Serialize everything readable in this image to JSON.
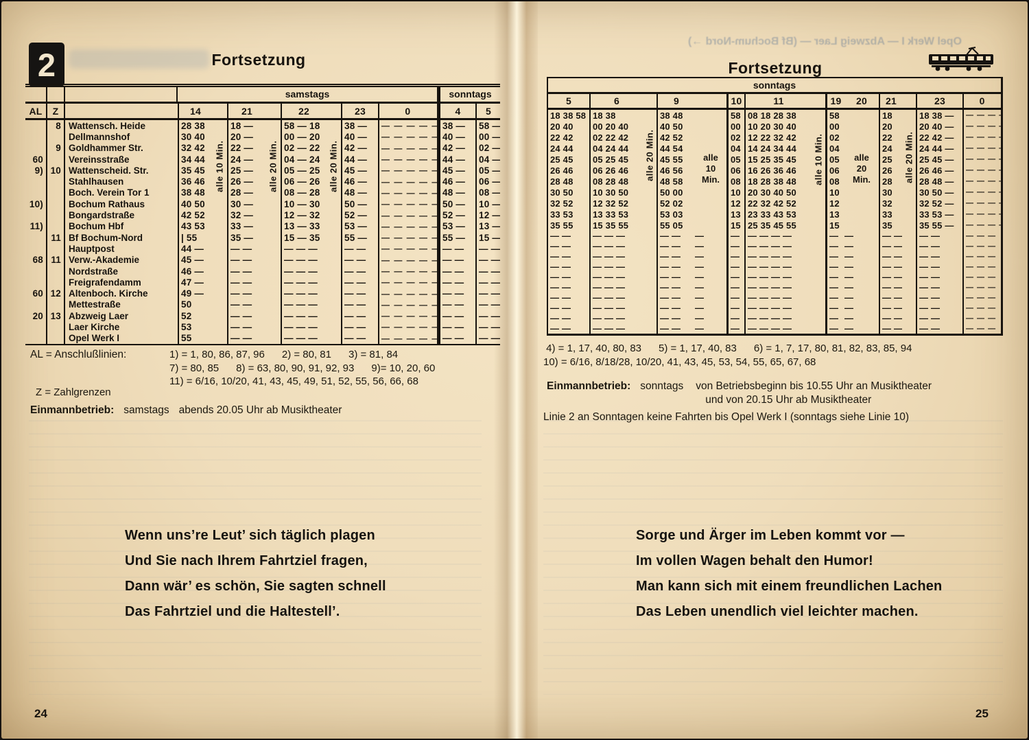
{
  "colors": {
    "paper": "#efddbb",
    "ink": "#17130e",
    "bleedthrough_blue": "#8098b2"
  },
  "page_left": {
    "badge": "2",
    "title": "Fortsetzung",
    "page_number": "24",
    "table": {
      "group_headers": {
        "samstags": "samstags",
        "sonntags": "sonntags"
      },
      "col_headers": [
        "AL",
        "Z",
        "",
        "14",
        "",
        "21",
        "",
        "22",
        "",
        "23",
        "0",
        "4",
        "5"
      ],
      "vertical_labels": [
        "alle 10 Min.",
        "alle 20 Min.",
        "alle 20 Min."
      ],
      "rows": [
        {
          "al": "",
          "z": "8",
          "name": "Wattensch. Heide",
          "c": [
            "28 38",
            "18 —",
            "58 — 18",
            "38 —",
            "— — — — —",
            "38 —",
            "58 —"
          ]
        },
        {
          "al": "",
          "z": "",
          "name": "Dellmannshof",
          "c": [
            "30 40",
            "20 —",
            "00 — 20",
            "40 —",
            "— — — — —",
            "40 —",
            "00 —"
          ]
        },
        {
          "al": "",
          "z": "9",
          "name": "Goldhammer Str.",
          "c": [
            "32 42",
            "22 —",
            "02 — 22",
            "42 —",
            "— — — — —",
            "42 —",
            "02 —"
          ]
        },
        {
          "al": "60",
          "z": "",
          "name": "Vereinsstraße",
          "c": [
            "34 44",
            "24 —",
            "04 — 24",
            "44 —",
            "— — — — —",
            "44 —",
            "04 —"
          ]
        },
        {
          "al": "9)",
          "z": "10",
          "name": "Wattenscheid. Str.",
          "c": [
            "35 45",
            "25 —",
            "05 — 25",
            "45 —",
            "— — — — —",
            "45 —",
            "05 —"
          ]
        },
        {
          "al": "",
          "z": "",
          "name": "Stahlhausen",
          "c": [
            "36 46",
            "26 —",
            "06 — 26",
            "46 —",
            "— — — — —",
            "46 —",
            "06 —"
          ]
        },
        {
          "al": "",
          "z": "",
          "name": "Boch. Verein Tor 1",
          "c": [
            "38 48",
            "28 —",
            "08 — 28",
            "48 —",
            "— — — — —",
            "48 —",
            "08 —"
          ]
        },
        {
          "al": "10)",
          "z": "",
          "name": "Bochum Rathaus",
          "c": [
            "40 50",
            "30 —",
            "10 — 30",
            "50 —",
            "— — — — —",
            "50 —",
            "10 —"
          ]
        },
        {
          "al": "",
          "z": "",
          "name": "Bongardstraße",
          "c": [
            "42 52",
            "32 —",
            "12 — 32",
            "52 —",
            "— — — — —",
            "52 —",
            "12 —"
          ]
        },
        {
          "al": "11)",
          "z": "",
          "name": "Bochum Hbf",
          "c": [
            "43 53",
            "33 —",
            "13 — 33",
            "53 —",
            "— — — — —",
            "53 —",
            "13 —"
          ]
        },
        {
          "al": "",
          "z": "11",
          "name": "Bf Bochum-Nord",
          "c": [
            "| 55",
            "35 —",
            "15 — 35",
            "55 —",
            "— — — — —",
            "55 —",
            "15 —"
          ]
        },
        {
          "al": "",
          "z": "",
          "name": "Hauptpost",
          "c": [
            "44 —",
            "— —",
            "— — —",
            "— —",
            "— — — — —",
            "— —",
            "— —"
          ]
        },
        {
          "al": "68",
          "z": "11",
          "name": "Verw.-Akademie",
          "c": [
            "45 —",
            "— —",
            "— — —",
            "— —",
            "— — — — —",
            "— —",
            "— —"
          ]
        },
        {
          "al": "",
          "z": "",
          "name": "Nordstraße",
          "c": [
            "46 —",
            "— —",
            "— — —",
            "— —",
            "— — — — —",
            "— —",
            "— —"
          ]
        },
        {
          "al": "",
          "z": "",
          "name": "Freigrafendamm",
          "c": [
            "47 —",
            "— —",
            "— — —",
            "— —",
            "— — — — —",
            "— —",
            "— —"
          ]
        },
        {
          "al": "60",
          "z": "12",
          "name": "Altenboch. Kirche",
          "c": [
            "49 —",
            "— —",
            "— — —",
            "— —",
            "— — — — —",
            "— —",
            "— —"
          ]
        },
        {
          "al": "",
          "z": "",
          "name": "Mettestraße",
          "c": [
            "50",
            "— —",
            "— — —",
            "— —",
            "— — — — —",
            "— —",
            "— —"
          ]
        },
        {
          "al": "20",
          "z": "13",
          "name": "Abzweig Laer",
          "c": [
            "52",
            "— —",
            "— — —",
            "— —",
            "— — — — —",
            "— —",
            "— —"
          ]
        },
        {
          "al": "",
          "z": "",
          "name": "Laer Kirche",
          "c": [
            "53",
            "— —",
            "— — —",
            "— —",
            "— — — — —",
            "— —",
            "— —"
          ]
        },
        {
          "al": "",
          "z": "",
          "name": "Opel Werk I",
          "c": [
            "55",
            "— —",
            "— — —",
            "— —",
            "— — — — —",
            "— —",
            "— —"
          ]
        }
      ]
    },
    "notes": {
      "al_label": "AL = Anschlußlinien:",
      "al_lines": [
        "1) = 1, 80, 86, 87, 96      2) = 80, 81      3) = 81, 84",
        "7) = 80, 85      8) = 63, 80, 90, 91, 92, 93      9)= 10, 20, 60",
        "11) = 6/16, 10/20, 41, 43, 45, 49, 51, 52, 55, 56, 66, 68"
      ],
      "z_note": "Z = Zahlgrenzen",
      "einmann_label": "Einmannbetrieb:",
      "einmann_day": "samstags",
      "einmann_text": "abends 20.05 Uhr ab Musiktheater"
    },
    "poem": [
      "Wenn uns’re Leut’ sich täglich plagen",
      "Und Sie nach Ihrem Fahrtziel fragen,",
      "Dann wär’ es schön, Sie sagten schnell",
      "Das Fahrtziel und die Haltestell’."
    ]
  },
  "page_right": {
    "title": "Fortsetzung",
    "bleedthrough": "Opel Werk I — Abzweig Laer — (Bf Bochum-Nord →)",
    "page_number": "25",
    "table": {
      "group_header": "sonntags",
      "col_headers": [
        "5",
        "6",
        "",
        "9",
        "",
        "10",
        "11",
        "",
        "19",
        "20",
        "21",
        "",
        "23",
        "0"
      ],
      "vertical_labels": [
        "alle 20 Min.",
        "alle 10 Min.",
        "alle 20 Min."
      ],
      "inline_labels": [
        "alle\n10\nMin.",
        "alle\n20\nMin."
      ],
      "rows": [
        {
          "c": [
            "18 38 58",
            "18 38",
            "38 48",
            "58",
            "08 18 28 38",
            "58",
            "18",
            "18 38 —",
            "— — — —"
          ]
        },
        {
          "c": [
            "20 40",
            "00 20 40",
            "40 50",
            "00",
            "10 20 30 40",
            "00",
            "20",
            "20 40 —",
            "— — — —"
          ]
        },
        {
          "c": [
            "22 42",
            "02 22 42",
            "42 52",
            "02",
            "12 22 32 42",
            "02",
            "22",
            "22 42 —",
            "— — — —"
          ]
        },
        {
          "c": [
            "24 44",
            "04 24 44",
            "44 54",
            "04",
            "14 24 34 44",
            "04",
            "24",
            "24 44 —",
            "— — — —"
          ]
        },
        {
          "c": [
            "25 45",
            "05 25 45",
            "45 55",
            "05",
            "15 25 35 45",
            "05",
            "25",
            "25 45 —",
            "— — — —"
          ]
        },
        {
          "c": [
            "26 46",
            "06 26 46",
            "46 56",
            "06",
            "16 26 36 46",
            "06",
            "26",
            "26 46 —",
            "— — — —"
          ]
        },
        {
          "c": [
            "28 48",
            "08 28 48",
            "48 58",
            "08",
            "18 28 38 48",
            "08",
            "28",
            "28 48 —",
            "— — — —"
          ]
        },
        {
          "c": [
            "30 50",
            "10 30 50",
            "50 00",
            "10",
            "20 30 40 50",
            "10",
            "30",
            "30 50 —",
            "— — — —"
          ]
        },
        {
          "c": [
            "32 52",
            "12 32 52",
            "52 02",
            "12",
            "22 32 42 52",
            "12",
            "32",
            "32 52 —",
            "— — — —"
          ]
        },
        {
          "c": [
            "33 53",
            "13 33 53",
            "53 03",
            "13",
            "23 33 43 53",
            "13",
            "33",
            "33 53 —",
            "— — — —"
          ]
        },
        {
          "c": [
            "35 55",
            "15 35 55",
            "55 05",
            "15",
            "25 35 45 55",
            "15",
            "35",
            "35 55 —",
            "— — — —"
          ]
        }
      ],
      "dash_row": {
        "c5": "— —",
        "c6": "— — —",
        "c9": "— —",
        "h10": "—",
        "c10": "—",
        "c11": "— — — —",
        "c19": "—",
        "h20": "—",
        "c21": "— —",
        "c23": "— —",
        "c0": "— — —"
      },
      "dash_row_count": 10
    },
    "notes": {
      "fn_lines": [
        " 4) = 1, 17, 40, 80, 83      5) = 1, 17, 40, 83      6) = 1, 7, 17, 80, 81, 82, 83, 85, 94",
        "10) = 6/16, 8/18/28, 10/20, 41, 43, 45, 53, 54, 55, 65, 67, 68"
      ],
      "einmann_label": "Einmannbetrieb:",
      "einmann_day": "sonntags",
      "einmann_line1": "von Betriebsbeginn bis 10.55 Uhr an Musiktheater",
      "einmann_line2": "und von 20.15 Uhr ab Musiktheater",
      "linie2_note": "Linie 2 an Sonntagen keine Fahrten bis Opel Werk I (sonntags siehe Linie 10)"
    },
    "poem": [
      "Sorge und Ärger im Leben kommt vor —",
      "Im vollen Wagen behalt den Humor!",
      "Man kann sich mit einem freundlichen Lachen",
      "Das Leben unendlich viel leichter machen."
    ]
  }
}
